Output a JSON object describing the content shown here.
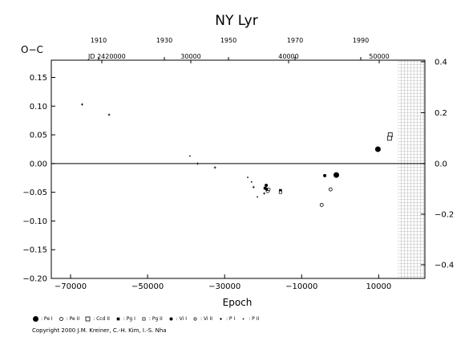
{
  "chart_data": {
    "type": "scatter",
    "title": "NY Lyr",
    "xlabel": "Epoch",
    "ylabel": "O−C",
    "xlim": [
      -75000,
      22000
    ],
    "ylim": [
      -0.2,
      0.18
    ],
    "x_ticks": [
      -70000,
      -50000,
      -30000,
      -10000,
      10000
    ],
    "x_tick_labels": [
      "−70000",
      "−50000",
      "−30000",
      "−10000",
      "10000"
    ],
    "y_ticks": [
      0.15,
      0.1,
      0.05,
      0.0,
      -0.05,
      -0.1,
      -0.15,
      -0.2
    ],
    "y_tick_labels": [
      "0.15",
      "0.10",
      "0.05",
      "0.00",
      "−0.05",
      "−0.10",
      "−0.15",
      "−0.20"
    ],
    "right_axis": {
      "ticks": [
        0.4,
        0.2,
        0.0,
        -0.2,
        -0.4
      ],
      "tick_labels": [
        "0.4",
        "0.2",
        "0.0",
        "−0.2",
        "−0.4"
      ]
    },
    "top_axis_years": [
      "1910",
      "1930",
      "1950",
      "1970",
      "1990"
    ],
    "top_axis_jd": [
      "JD 2420000",
      "30000",
      "40000",
      "50000"
    ],
    "zero_line": 0.0,
    "shaded_region_start": 15000,
    "series": [
      {
        "name": "Pe I",
        "marker": "filled-circle-large",
        "points": [
          [
            9800,
            0.025
          ],
          [
            -1000,
            -0.02
          ]
        ]
      },
      {
        "name": "Pe II",
        "marker": "open-circle",
        "points": [
          [
            -4800,
            -0.072
          ],
          [
            -2500,
            -0.045
          ],
          [
            -18800,
            -0.048
          ]
        ]
      },
      {
        "name": "Ccd II",
        "marker": "open-square",
        "points": [
          [
            13000,
            0.05
          ],
          [
            12800,
            0.044
          ]
        ]
      },
      {
        "name": "Pg I",
        "marker": "filled-square",
        "points": [
          [
            -15500,
            -0.047
          ],
          [
            -19500,
            -0.043
          ]
        ]
      },
      {
        "name": "Pg II",
        "marker": "open-square-small",
        "points": [
          [
            -15500,
            -0.05
          ]
        ]
      },
      {
        "name": "Vi I",
        "marker": "filled-circle-small",
        "points": [
          [
            -4000,
            -0.021
          ],
          [
            -19200,
            -0.038
          ],
          [
            -19000,
            -0.045
          ]
        ]
      },
      {
        "name": "Vi II",
        "marker": "open-circle-small",
        "points": [
          [
            -18500,
            -0.045
          ]
        ]
      },
      {
        "name": "P I",
        "marker": "plus",
        "points": [
          [
            -67000,
            0.103
          ],
          [
            -60000,
            0.085
          ],
          [
            -37000,
            0.0
          ],
          [
            -32500,
            -0.007
          ],
          [
            -19700,
            -0.052
          ],
          [
            -22500,
            -0.041
          ]
        ]
      },
      {
        "name": "P II",
        "marker": "dot",
        "points": [
          [
            -39000,
            0.013
          ],
          [
            -24000,
            -0.024
          ],
          [
            -23000,
            -0.032
          ],
          [
            -21500,
            -0.058
          ]
        ]
      }
    ]
  },
  "legend_items": [
    {
      "symbol": "filled-circle-large",
      "label": ": Pe I"
    },
    {
      "symbol": "open-circle",
      "label": ": Pe II"
    },
    {
      "symbol": "open-square",
      "label": ": Ccd II"
    },
    {
      "symbol": "filled-square",
      "label": ": Pg I"
    },
    {
      "symbol": "open-square-small",
      "label": ": Pg II"
    },
    {
      "symbol": "filled-circle-small",
      "label": ": Vi I"
    },
    {
      "symbol": "open-circle-small",
      "label": ": Vi II"
    },
    {
      "symbol": "plus",
      "label": ": P I"
    },
    {
      "symbol": "dot",
      "label": ": P II"
    }
  ],
  "copyright": "Copyright 2000 J.M. Kreiner, C.-H. Kim, I.-S. Nha"
}
